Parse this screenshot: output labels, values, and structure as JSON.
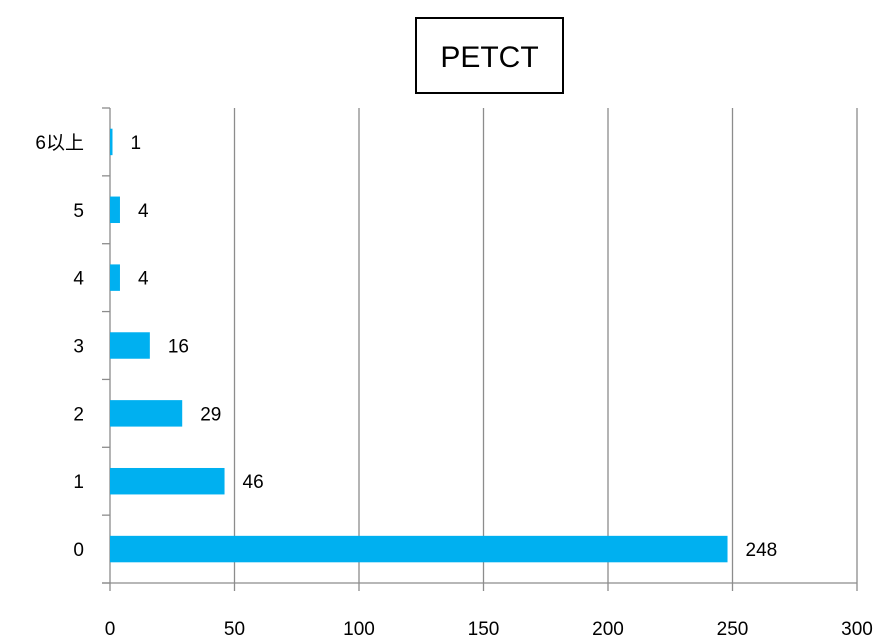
{
  "chart_data": {
    "type": "bar",
    "orientation": "horizontal",
    "title": "PETCT",
    "categories": [
      "0",
      "1",
      "2",
      "3",
      "4",
      "5",
      "6以上"
    ],
    "values": [
      248,
      46,
      29,
      16,
      4,
      4,
      1
    ],
    "xlim": [
      0,
      300
    ],
    "xticks": [
      0,
      50,
      100,
      150,
      200,
      250,
      300
    ],
    "grid": "vertical",
    "legend": "none",
    "bar_color": "#00b0f0"
  }
}
